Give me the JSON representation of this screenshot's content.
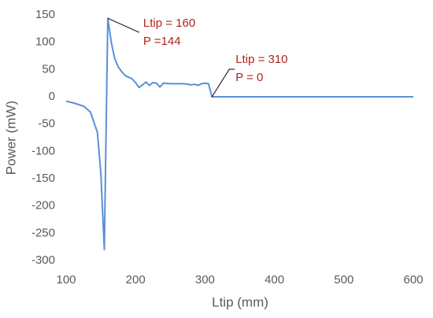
{
  "chart_data": {
    "type": "line",
    "x_label": "Ltip  (mm)",
    "y_label": "Power (mW)",
    "xlim": [
      100,
      600
    ],
    "xticks": [
      100,
      200,
      300,
      400,
      500,
      600
    ],
    "ylim": [
      -300,
      150
    ],
    "yticks": [
      -300,
      -250,
      -200,
      -150,
      -100,
      -50,
      0,
      50,
      100,
      150
    ],
    "series": [
      {
        "color": "#5b8fd6",
        "x": [
          100,
          110,
          125,
          135,
          145,
          150,
          155,
          160,
          165,
          170,
          175,
          180,
          185,
          190,
          195,
          200,
          205,
          210,
          215,
          220,
          225,
          230,
          235,
          240,
          250,
          260,
          270,
          280,
          285,
          290,
          295,
          300,
          305,
          310,
          400,
          500,
          600
        ],
        "values": [
          -8,
          -11,
          -17,
          -28,
          -65,
          -140,
          -280,
          144,
          100,
          70,
          55,
          46,
          39,
          36,
          33,
          26,
          17,
          22,
          27,
          21,
          26,
          25,
          18,
          25,
          24,
          24,
          24,
          22,
          23,
          21,
          24,
          25,
          24,
          0,
          0,
          0,
          0
        ]
      }
    ],
    "annotations": [
      {
        "lines": [
          "Ltip = 160",
          "P =144"
        ],
        "x": 160,
        "y": 144,
        "color": "#b0241b"
      },
      {
        "lines": [
          "Ltip = 310",
          "P = 0"
        ],
        "x": 310,
        "y": 0,
        "color": "#b0241b"
      }
    ]
  }
}
